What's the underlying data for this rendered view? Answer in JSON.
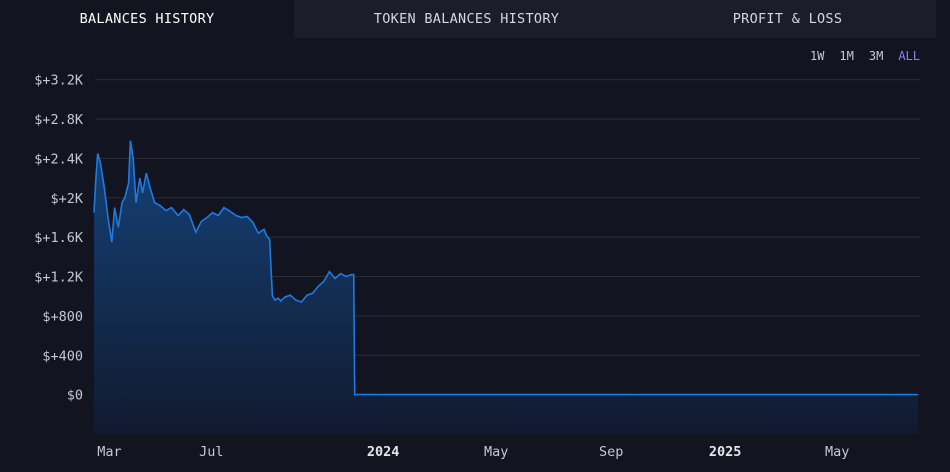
{
  "tabs": [
    {
      "label": "BALANCES HISTORY",
      "active": true
    },
    {
      "label": "TOKEN BALANCES HISTORY",
      "active": false
    },
    {
      "label": "PROFIT & LOSS",
      "active": false
    }
  ],
  "ranges": [
    {
      "label": "1W",
      "active": false
    },
    {
      "label": "1M",
      "active": false
    },
    {
      "label": "3M",
      "active": false
    },
    {
      "label": "ALL",
      "active": true
    }
  ],
  "colors": {
    "background": "#121520",
    "tab_bar": "#1b1e29",
    "line": "#1f7ae0",
    "area_top": "#15427a",
    "area_bottom": "#111a2e",
    "grid": "#2a2d38",
    "accent": "#8e7cf0"
  },
  "chart_data": {
    "type": "area",
    "y_tick_labels": [
      "$0",
      "$+400",
      "$+800",
      "$+1.2K",
      "$+1.6K",
      "$+2K",
      "$+2.4K",
      "$+2.8K",
      "$+3.2K"
    ],
    "y_ticks": [
      0,
      400,
      800,
      1200,
      1600,
      2000,
      2400,
      2800,
      3200
    ],
    "ylim": [
      -400,
      3400
    ],
    "x_ticks": [
      {
        "label": "Mar",
        "date": "2023-03-01",
        "bold": false
      },
      {
        "label": "Jul",
        "date": "2023-07-01",
        "bold": false
      },
      {
        "label": "2024",
        "date": "2024-01-01",
        "bold": true
      },
      {
        "label": "May",
        "date": "2024-05-01",
        "bold": false
      },
      {
        "label": "Sep",
        "date": "2024-09-01",
        "bold": false
      },
      {
        "label": "2025",
        "date": "2025-01-01",
        "bold": true
      },
      {
        "label": "May",
        "date": "2025-05-01",
        "bold": false
      }
    ],
    "xlim": [
      "2023-02-26",
      "2025-07-27"
    ],
    "grid": true,
    "series": [
      {
        "x": [
          "2023-02-26",
          "2023-02-28",
          "2023-03-02",
          "2023-03-05",
          "2023-03-09",
          "2023-03-13",
          "2023-03-17",
          "2023-03-20",
          "2023-03-24",
          "2023-03-28",
          "2023-03-31",
          "2023-04-04",
          "2023-04-06",
          "2023-04-09",
          "2023-04-12",
          "2023-04-16",
          "2023-04-19",
          "2023-04-23",
          "2023-04-27",
          "2023-05-02",
          "2023-05-08",
          "2023-05-14",
          "2023-05-20",
          "2023-05-27",
          "2023-06-02",
          "2023-06-08",
          "2023-06-15",
          "2023-06-21",
          "2023-06-27",
          "2023-07-03",
          "2023-07-09",
          "2023-07-15",
          "2023-07-22",
          "2023-07-28",
          "2023-08-03",
          "2023-08-09",
          "2023-08-15",
          "2023-08-21",
          "2023-08-27",
          "2023-08-30",
          "2023-09-02",
          "2023-09-05",
          "2023-09-08",
          "2023-09-11",
          "2023-09-14",
          "2023-09-18",
          "2023-09-24",
          "2023-09-30",
          "2023-10-06",
          "2023-10-12",
          "2023-10-18",
          "2023-10-24",
          "2023-10-30",
          "2023-11-05",
          "2023-11-11",
          "2023-11-17",
          "2023-11-23",
          "2023-11-29",
          "2023-12-01",
          "2023-12-02",
          "2025-07-27"
        ],
        "y": [
          1850,
          2200,
          2450,
          2350,
          2100,
          1800,
          1550,
          1900,
          1700,
          1950,
          2000,
          2150,
          2580,
          2400,
          1950,
          2200,
          2050,
          2250,
          2100,
          1950,
          1920,
          1870,
          1900,
          1820,
          1880,
          1830,
          1650,
          1760,
          1800,
          1850,
          1820,
          1900,
          1860,
          1820,
          1800,
          1810,
          1750,
          1640,
          1680,
          1610,
          1580,
          1000,
          960,
          980,
          950,
          990,
          1010,
          960,
          940,
          1010,
          1030,
          1100,
          1150,
          1250,
          1180,
          1230,
          1200,
          1220,
          1220,
          0,
          0
        ]
      }
    ]
  }
}
